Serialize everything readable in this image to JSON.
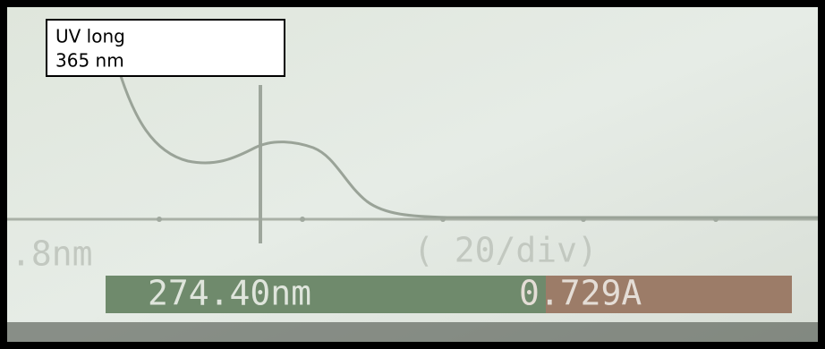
{
  "label": {
    "line1": "UV long",
    "line2": "365 nm"
  },
  "screen": {
    "scale_left": ".8nm",
    "scale_div": "( 20/div)"
  },
  "readout": {
    "wavelength": "274.40nm",
    "absorbance": "0.729A"
  }
}
